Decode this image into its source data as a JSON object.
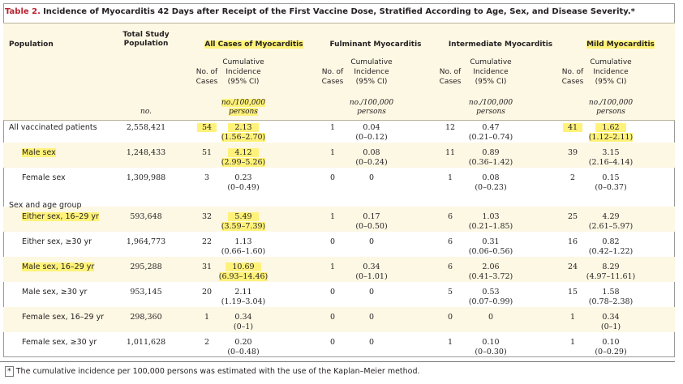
{
  "table": {
    "number": "Table 2.",
    "title": "Incidence of Myocarditis 42 Days after Receipt of the First Vaccine Dose, Stratified According to Age, Sex, and Disease Severity.*",
    "headers": {
      "population": "Population",
      "total_line1": "Total Study",
      "total_line2": "Population",
      "all_cases": "All Cases of Myocarditis",
      "fulminant": "Fulminant Myocarditis",
      "intermediate": "Intermediate Myocarditis",
      "mild": "Mild Myocarditis",
      "no_of": "No. of",
      "cases": "Cases",
      "cumulative": "Cumulative",
      "incidence": "Incidence",
      "ci": "(95% CI)",
      "no_unit": "no.",
      "per100k": "no./100,000",
      "persons": "persons"
    },
    "section_label": "Sex and age group",
    "rows": [
      {
        "label": "All vaccinated patients",
        "total": "2,558,421",
        "all_n": "54",
        "all_inc": "2.13",
        "all_ci": "(1.56–2.70)",
        "ful_n": "1",
        "ful_inc": "0.04",
        "ful_ci": "(0–0.12)",
        "int_n": "12",
        "int_inc": "0.47",
        "int_ci": "(0.21–0.74)",
        "mild_n": "41",
        "mild_inc": "1.62",
        "mild_ci": "(1.12–2.11)"
      },
      {
        "label": "Male sex",
        "total": "1,248,433",
        "all_n": "51",
        "all_inc": "4.12",
        "all_ci": "(2.99–5.26)",
        "ful_n": "1",
        "ful_inc": "0.08",
        "ful_ci": "(0–0.24)",
        "int_n": "11",
        "int_inc": "0.89",
        "int_ci": "(0.36–1.42)",
        "mild_n": "39",
        "mild_inc": "3.15",
        "mild_ci": "(2.16–4.14)"
      },
      {
        "label": "Female sex",
        "total": "1,309,988",
        "all_n": "3",
        "all_inc": "0.23",
        "all_ci": "(0–0.49)",
        "ful_n": "0",
        "ful_inc": "0",
        "ful_ci": "",
        "int_n": "1",
        "int_inc": "0.08",
        "int_ci": "(0–0.23)",
        "mild_n": "2",
        "mild_inc": "0.15",
        "mild_ci": "(0–0.37)"
      },
      {
        "label": "Either sex, 16–29 yr",
        "total": "593,648",
        "all_n": "32",
        "all_inc": "5.49",
        "all_ci": "(3.59–7.39)",
        "ful_n": "1",
        "ful_inc": "0.17",
        "ful_ci": "(0–0.50)",
        "int_n": "6",
        "int_inc": "1.03",
        "int_ci": "(0.21–1.85)",
        "mild_n": "25",
        "mild_inc": "4.29",
        "mild_ci": "(2.61–5.97)"
      },
      {
        "label": "Either sex, ≥30 yr",
        "total": "1,964,773",
        "all_n": "22",
        "all_inc": "1.13",
        "all_ci": "(0.66–1.60)",
        "ful_n": "0",
        "ful_inc": "0",
        "ful_ci": "",
        "int_n": "6",
        "int_inc": "0.31",
        "int_ci": "(0.06–0.56)",
        "mild_n": "16",
        "mild_inc": "0.82",
        "mild_ci": "(0.42–1.22)"
      },
      {
        "label": "Male sex, 16–29 yr",
        "total": "295,288",
        "all_n": "31",
        "all_inc": "10.69",
        "all_ci": "(6.93–14.46)",
        "ful_n": "1",
        "ful_inc": "0.34",
        "ful_ci": "(0–1.01)",
        "int_n": "6",
        "int_inc": "2.06",
        "int_ci": "(0.41–3.72)",
        "mild_n": "24",
        "mild_inc": "8.29",
        "mild_ci": "(4.97–11.61)"
      },
      {
        "label": "Male sex, ≥30 yr",
        "total": "953,145",
        "all_n": "20",
        "all_inc": "2.11",
        "all_ci": "(1.19–3.04)",
        "ful_n": "0",
        "ful_inc": "0",
        "ful_ci": "",
        "int_n": "5",
        "int_inc": "0.53",
        "int_ci": "(0.07–0.99)",
        "mild_n": "15",
        "mild_inc": "1.58",
        "mild_ci": "(0.78–2.38)"
      },
      {
        "label": "Female sex, 16–29 yr",
        "total": "298,360",
        "all_n": "1",
        "all_inc": "0.34",
        "all_ci": "(0–1)",
        "ful_n": "0",
        "ful_inc": "0",
        "ful_ci": "",
        "int_n": "0",
        "int_inc": "0",
        "int_ci": "",
        "mild_n": "1",
        "mild_inc": "0.34",
        "mild_ci": "(0–1)"
      },
      {
        "label": "Female sex, ≥30 yr",
        "total": "1,011,628",
        "all_n": "2",
        "all_inc": "0.20",
        "all_ci": "(0–0.48)",
        "ful_n": "0",
        "ful_inc": "0",
        "ful_ci": "",
        "int_n": "1",
        "int_inc": "0.10",
        "int_ci": "(0–0.30)",
        "mild_n": "1",
        "mild_inc": "0.10",
        "mild_ci": "(0–0.29)"
      }
    ],
    "footnote_mark": "*",
    "footnote": "The cumulative incidence per 100,000 persons was estimated with the use of the Kaplan–Meier method."
  },
  "colors": {
    "title_number": "#b8232f",
    "highlight": "#fff27a",
    "header_fill": "#fdf8e4"
  }
}
